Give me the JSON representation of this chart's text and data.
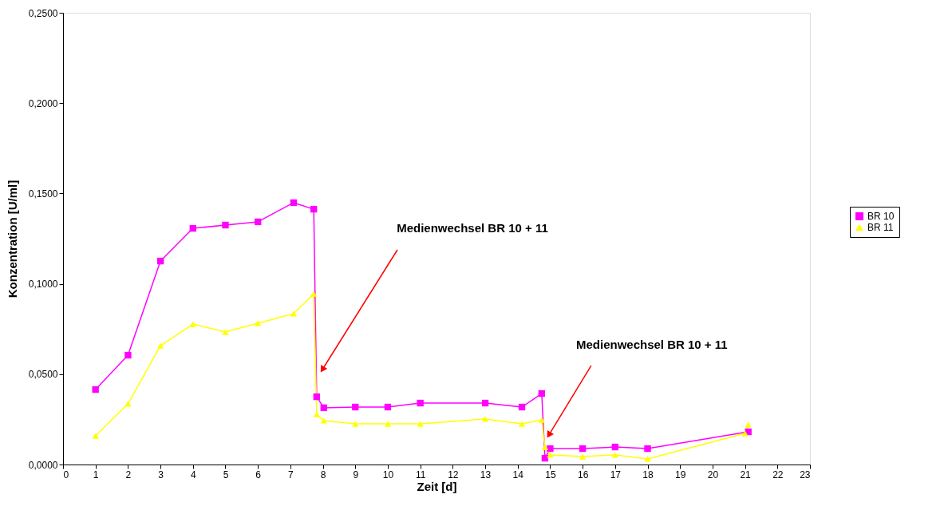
{
  "chart_data": {
    "type": "line",
    "xlabel": "Zeit [d]",
    "ylabel": "Konzentration [U/ml]",
    "xlim": [
      0,
      23
    ],
    "xticks": [
      0,
      1,
      2,
      3,
      4,
      5,
      6,
      7,
      8,
      9,
      10,
      11,
      12,
      13,
      14,
      15,
      16,
      17,
      18,
      19,
      20,
      21,
      22,
      23
    ],
    "ylim": [
      0,
      0.25
    ],
    "yticks": [
      {
        "value": 0,
        "label": "0,0000"
      },
      {
        "value": 0.05,
        "label": "0,0500"
      },
      {
        "value": 0.1,
        "label": "0,1000"
      },
      {
        "value": 0.15,
        "label": "0,1500"
      },
      {
        "value": 0.2,
        "label": "0,2000"
      },
      {
        "value": 0.25,
        "label": "0,2500"
      }
    ],
    "grid": false,
    "legend": "right",
    "line_style": "solid",
    "series": [
      {
        "name": "BR 10",
        "color": "#ff00ff",
        "marker": "square",
        "x": [
          1,
          2,
          3,
          4,
          5,
          6,
          7.1,
          7.72,
          7.81,
          8.03,
          9,
          10,
          11,
          13,
          14.13,
          14.74,
          14.84,
          15,
          16,
          17,
          18,
          21.1
        ],
        "values": [
          0.0415,
          0.0605,
          0.1126,
          0.1307,
          0.1325,
          0.1343,
          0.1449,
          0.1413,
          0.0375,
          0.0314,
          0.0318,
          0.0318,
          0.034,
          0.034,
          0.0318,
          0.0393,
          0.0035,
          0.0088,
          0.0088,
          0.0097,
          0.0088,
          0.0181
        ]
      },
      {
        "name": "BR 11",
        "color": "#ffff00",
        "marker": "triangle",
        "x": [
          1,
          2,
          3,
          4,
          5,
          6,
          7.1,
          7.72,
          7.81,
          8.03,
          9,
          10,
          11,
          13,
          14.13,
          14.74,
          14.84,
          15,
          16,
          17,
          18,
          21.0,
          21.1
        ],
        "values": [
          0.0159,
          0.0336,
          0.0658,
          0.0777,
          0.0733,
          0.0782,
          0.0835,
          0.0945,
          0.0278,
          0.0243,
          0.0225,
          0.0225,
          0.0225,
          0.0252,
          0.0225,
          0.0247,
          0.0097,
          0.0053,
          0.0044,
          0.0053,
          0.0031,
          0.0172,
          0.0221
        ]
      }
    ],
    "annotations": [
      "Medienwechsel BR 10 + 11",
      {
        "text": "Medienwechsel BR 10 + 11",
        "x": 14.96,
        "y": 0.0163
      }
    ]
  }
}
